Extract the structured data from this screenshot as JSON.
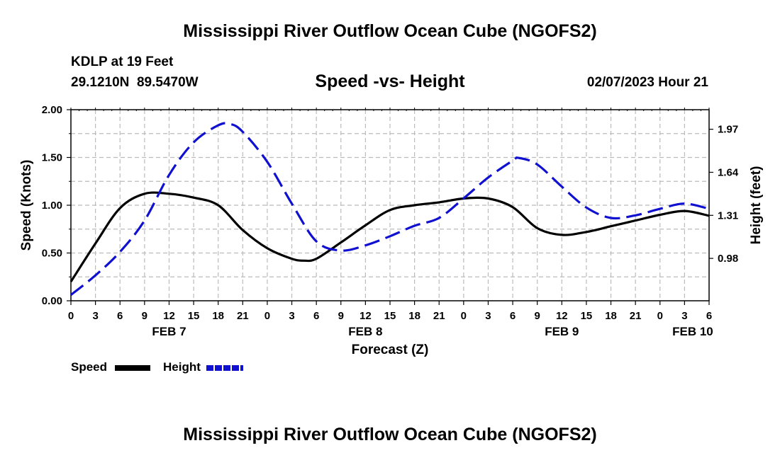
{
  "header": {
    "title": "Mississippi River Outflow Ocean Cube (NGOFS2)",
    "station_name": "KDLP at 19 Feet",
    "station_coords": "29.1210N  89.5470W",
    "subtitle": "Speed -vs- Height",
    "datetime": "02/07/2023 Hour 21"
  },
  "footer": {
    "title": "Mississippi River Outflow Ocean Cube (NGOFS2)"
  },
  "legend": {
    "speed_label": "Speed",
    "height_label": "Height"
  },
  "colors": {
    "speed_line": "#000000",
    "height_line": "#1010d0",
    "grid": "#bbbbbb"
  },
  "chart_data": {
    "type": "line",
    "title": "Speed -vs- Height",
    "xlabel": "Forecast (Z)",
    "ylabel": "Speed (Knots)",
    "y2label": "Height (feet)",
    "xlim": [
      0,
      78
    ],
    "ylim": [
      0,
      2.0
    ],
    "y2lim": [
      0.655,
      2.12
    ],
    "x_tick_hours": [
      0,
      3,
      6,
      9,
      12,
      15,
      18,
      21,
      24,
      27,
      30,
      33,
      36,
      39,
      42,
      45,
      48,
      51,
      54,
      57,
      60,
      63,
      66,
      69,
      72,
      75,
      78
    ],
    "x_tick_labels": [
      "0",
      "3",
      "6",
      "9",
      "12",
      "15",
      "18",
      "21",
      "0",
      "3",
      "6",
      "9",
      "12",
      "15",
      "18",
      "21",
      "0",
      "3",
      "6",
      "9",
      "12",
      "15",
      "18",
      "21",
      "0",
      "3",
      "6"
    ],
    "day_labels": [
      {
        "label": "FEB 7",
        "hour": 12
      },
      {
        "label": "FEB 8",
        "hour": 36
      },
      {
        "label": "FEB 9",
        "hour": 60
      },
      {
        "label": "FEB 10",
        "hour": 76
      }
    ],
    "y_ticks": [
      0.0,
      0.5,
      1.0,
      1.5,
      2.0
    ],
    "y_tick_labels": [
      "0.00",
      "0.50",
      "1.00",
      "1.50",
      "2.00"
    ],
    "y2_ticks": [
      0.98,
      1.31,
      1.64,
      1.97
    ],
    "y2_tick_labels": [
      "0.98",
      "1.31",
      "1.64",
      "1.97"
    ],
    "grid": true,
    "series": [
      {
        "name": "Speed",
        "axis": "left",
        "style": "solid",
        "x": [
          0,
          3,
          6,
          9,
          12,
          15,
          18,
          21,
          24,
          27,
          28.5,
          30,
          33,
          36,
          39,
          42,
          45,
          48,
          51,
          54,
          57,
          60,
          63,
          66,
          69,
          72,
          75,
          78
        ],
        "values": [
          0.2,
          0.6,
          0.97,
          1.12,
          1.12,
          1.08,
          1.0,
          0.74,
          0.55,
          0.44,
          0.42,
          0.44,
          0.61,
          0.79,
          0.95,
          1.0,
          1.03,
          1.07,
          1.07,
          0.98,
          0.76,
          0.69,
          0.72,
          0.78,
          0.84,
          0.9,
          0.94,
          0.89
        ]
      },
      {
        "name": "Height",
        "axis": "right",
        "style": "dashed",
        "x": [
          0,
          3,
          6,
          9,
          12,
          15,
          18,
          19.5,
          21,
          24,
          27,
          30,
          33,
          36,
          39,
          42,
          45,
          48,
          51,
          54,
          54.75,
          57,
          60,
          63,
          66,
          69,
          72,
          75,
          78
        ],
        "values": [
          0.7,
          0.85,
          1.03,
          1.27,
          1.62,
          1.87,
          2.0,
          2.01,
          1.95,
          1.72,
          1.4,
          1.11,
          1.04,
          1.08,
          1.15,
          1.23,
          1.29,
          1.44,
          1.6,
          1.73,
          1.75,
          1.7,
          1.53,
          1.37,
          1.29,
          1.31,
          1.36,
          1.4,
          1.36
        ]
      }
    ]
  }
}
